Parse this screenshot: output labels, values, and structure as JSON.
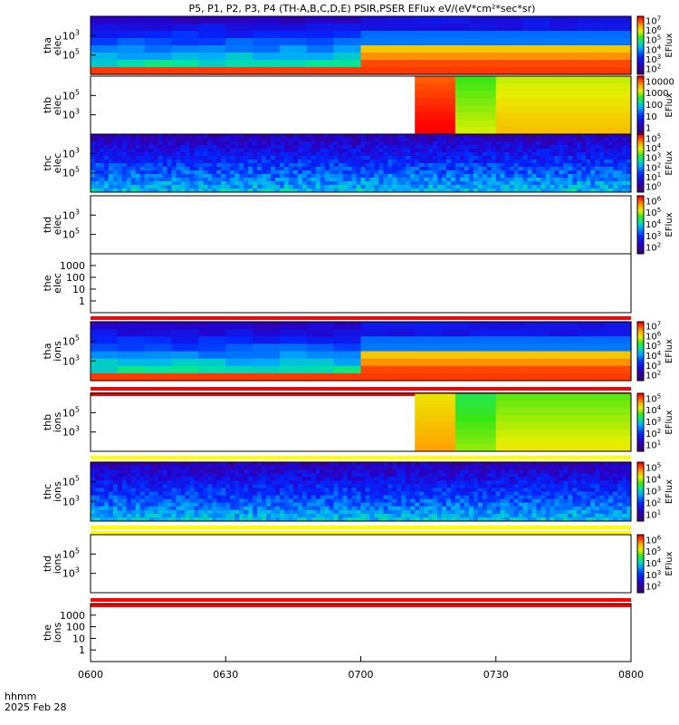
{
  "title": "P5, P1, P2, P3, P4 (TH-A,B,C,D,E) PSIR,PSER EFlux eV/(eV*cm²*sec*sr)",
  "footer": {
    "time_label": "hhmm",
    "date_label": "2025 Feb 28",
    "x_ticks": [
      "0600",
      "0630",
      "0700",
      "0730",
      "0800"
    ]
  },
  "colors": {
    "red_band": "#ff0000",
    "yellow_band": "#ffff00"
  },
  "chart_data": [
    {
      "type": "heatmap",
      "ylabel": [
        "tha",
        "elec"
      ],
      "yscale": "log",
      "y_ticks": [
        {
          "label": "10",
          "exp": "3"
        },
        {
          "label": "10",
          "exp": "5"
        }
      ],
      "colorbar": {
        "label": "EFlux",
        "ticks": [
          {
            "b": "10",
            "e": "7"
          },
          {
            "b": "10",
            "e": "6"
          },
          {
            "b": "10",
            "e": "5"
          },
          {
            "b": "10",
            "e": "4"
          },
          {
            "b": "10",
            "e": "3"
          },
          {
            "b": "10",
            "e": "2"
          }
        ]
      },
      "pattern": "tha",
      "change_time": "0655"
    },
    {
      "type": "heatmap",
      "ylabel": [
        "thb",
        "elec"
      ],
      "yscale": "log",
      "y_ticks": [
        {
          "label": "10",
          "exp": "5"
        },
        {
          "label": "10",
          "exp": "3"
        }
      ],
      "colorbar": {
        "label": "EFlux",
        "ticks": [
          {
            "b": "10000",
            "e": ""
          },
          {
            "b": "1000",
            "e": ""
          },
          {
            "b": "100",
            "e": ""
          },
          {
            "b": "10",
            "e": ""
          },
          {
            "b": "1",
            "e": ""
          }
        ]
      },
      "pattern": "thb",
      "data_start": "0712"
    },
    {
      "type": "heatmap",
      "ylabel": [
        "thc",
        "elec"
      ],
      "yscale": "log",
      "y_ticks": [
        {
          "label": "10",
          "exp": "3"
        },
        {
          "label": "10",
          "exp": "5"
        }
      ],
      "colorbar": {
        "label": "EFlux",
        "ticks": [
          {
            "b": "10",
            "e": "5"
          },
          {
            "b": "10",
            "e": "4"
          },
          {
            "b": "10",
            "e": "3"
          },
          {
            "b": "10",
            "e": "2"
          },
          {
            "b": "10",
            "e": "1"
          },
          {
            "b": "10",
            "e": "0"
          }
        ]
      },
      "pattern": "noisy"
    },
    {
      "type": "heatmap",
      "ylabel": [
        "thd",
        "elec"
      ],
      "yscale": "log",
      "y_ticks": [
        {
          "label": "10",
          "exp": "3"
        },
        {
          "label": "10",
          "exp": "5"
        }
      ],
      "colorbar": {
        "label": "EFlux",
        "ticks": [
          {
            "b": "10",
            "e": "6"
          },
          {
            "b": "10",
            "e": "5"
          },
          {
            "b": "10",
            "e": "4"
          },
          {
            "b": "10",
            "e": "3"
          },
          {
            "b": "10",
            "e": "2"
          }
        ]
      },
      "pattern": "empty"
    },
    {
      "type": "heatmap",
      "ylabel": [
        "the",
        "elec"
      ],
      "yscale": "log",
      "y_ticks": [
        {
          "label": "1000",
          "exp": ""
        },
        {
          "label": "100",
          "exp": ""
        },
        {
          "label": "10",
          "exp": ""
        },
        {
          "label": "1",
          "exp": ""
        }
      ],
      "pattern": "empty",
      "band_below": "red"
    },
    {
      "type": "heatmap",
      "ylabel": [
        "tha",
        "ions"
      ],
      "yscale": "log",
      "y_ticks": [
        {
          "label": "10",
          "exp": "5"
        },
        {
          "label": "10",
          "exp": "3"
        }
      ],
      "colorbar": {
        "label": "EFlux",
        "ticks": [
          {
            "b": "10",
            "e": "7"
          },
          {
            "b": "10",
            "e": "6"
          },
          {
            "b": "10",
            "e": "5"
          },
          {
            "b": "10",
            "e": "4"
          },
          {
            "b": "10",
            "e": "3"
          },
          {
            "b": "10",
            "e": "2"
          }
        ]
      },
      "pattern": "tha_ions",
      "change_time": "0655",
      "band_below": "red"
    },
    {
      "type": "heatmap",
      "ylabel": [
        "thb",
        "ions"
      ],
      "yscale": "log",
      "y_ticks": [
        {
          "label": "10",
          "exp": "5"
        },
        {
          "label": "10",
          "exp": "3"
        }
      ],
      "colorbar": {
        "label": "EFlux",
        "ticks": [
          {
            "b": "10",
            "e": "5"
          },
          {
            "b": "10",
            "e": "4"
          },
          {
            "b": "10",
            "e": "3"
          },
          {
            "b": "10",
            "e": "2"
          },
          {
            "b": "10",
            "e": "1"
          }
        ]
      },
      "pattern": "thb_ions",
      "data_start": "0712",
      "band_below": "yellow"
    },
    {
      "type": "heatmap",
      "ylabel": [
        "thc",
        "ions"
      ],
      "yscale": "log",
      "y_ticks": [
        {
          "label": "10",
          "exp": "5"
        },
        {
          "label": "10",
          "exp": "3"
        }
      ],
      "colorbar": {
        "label": "EFlux",
        "ticks": [
          {
            "b": "10",
            "e": "5"
          },
          {
            "b": "10",
            "e": "4"
          },
          {
            "b": "10",
            "e": "3"
          },
          {
            "b": "10",
            "e": "2"
          },
          {
            "b": "10",
            "e": "1"
          }
        ]
      },
      "pattern": "noisy_ions",
      "band_below": "yellow"
    },
    {
      "type": "heatmap",
      "ylabel": [
        "thd",
        "ions"
      ],
      "yscale": "log",
      "y_ticks": [
        {
          "label": "10",
          "exp": "5"
        },
        {
          "label": "10",
          "exp": "3"
        }
      ],
      "colorbar": {
        "label": "EFlux",
        "ticks": [
          {
            "b": "10",
            "e": "6"
          },
          {
            "b": "10",
            "e": "5"
          },
          {
            "b": "10",
            "e": "4"
          },
          {
            "b": "10",
            "e": "3"
          },
          {
            "b": "10",
            "e": "2"
          }
        ]
      },
      "pattern": "empty",
      "band_below": "red"
    },
    {
      "type": "heatmap",
      "ylabel": [
        "the",
        "ions"
      ],
      "yscale": "log",
      "y_ticks": [
        {
          "label": "1000",
          "exp": ""
        },
        {
          "label": "100",
          "exp": ""
        },
        {
          "label": "10",
          "exp": ""
        },
        {
          "label": "1",
          "exp": ""
        }
      ],
      "pattern": "empty"
    }
  ]
}
